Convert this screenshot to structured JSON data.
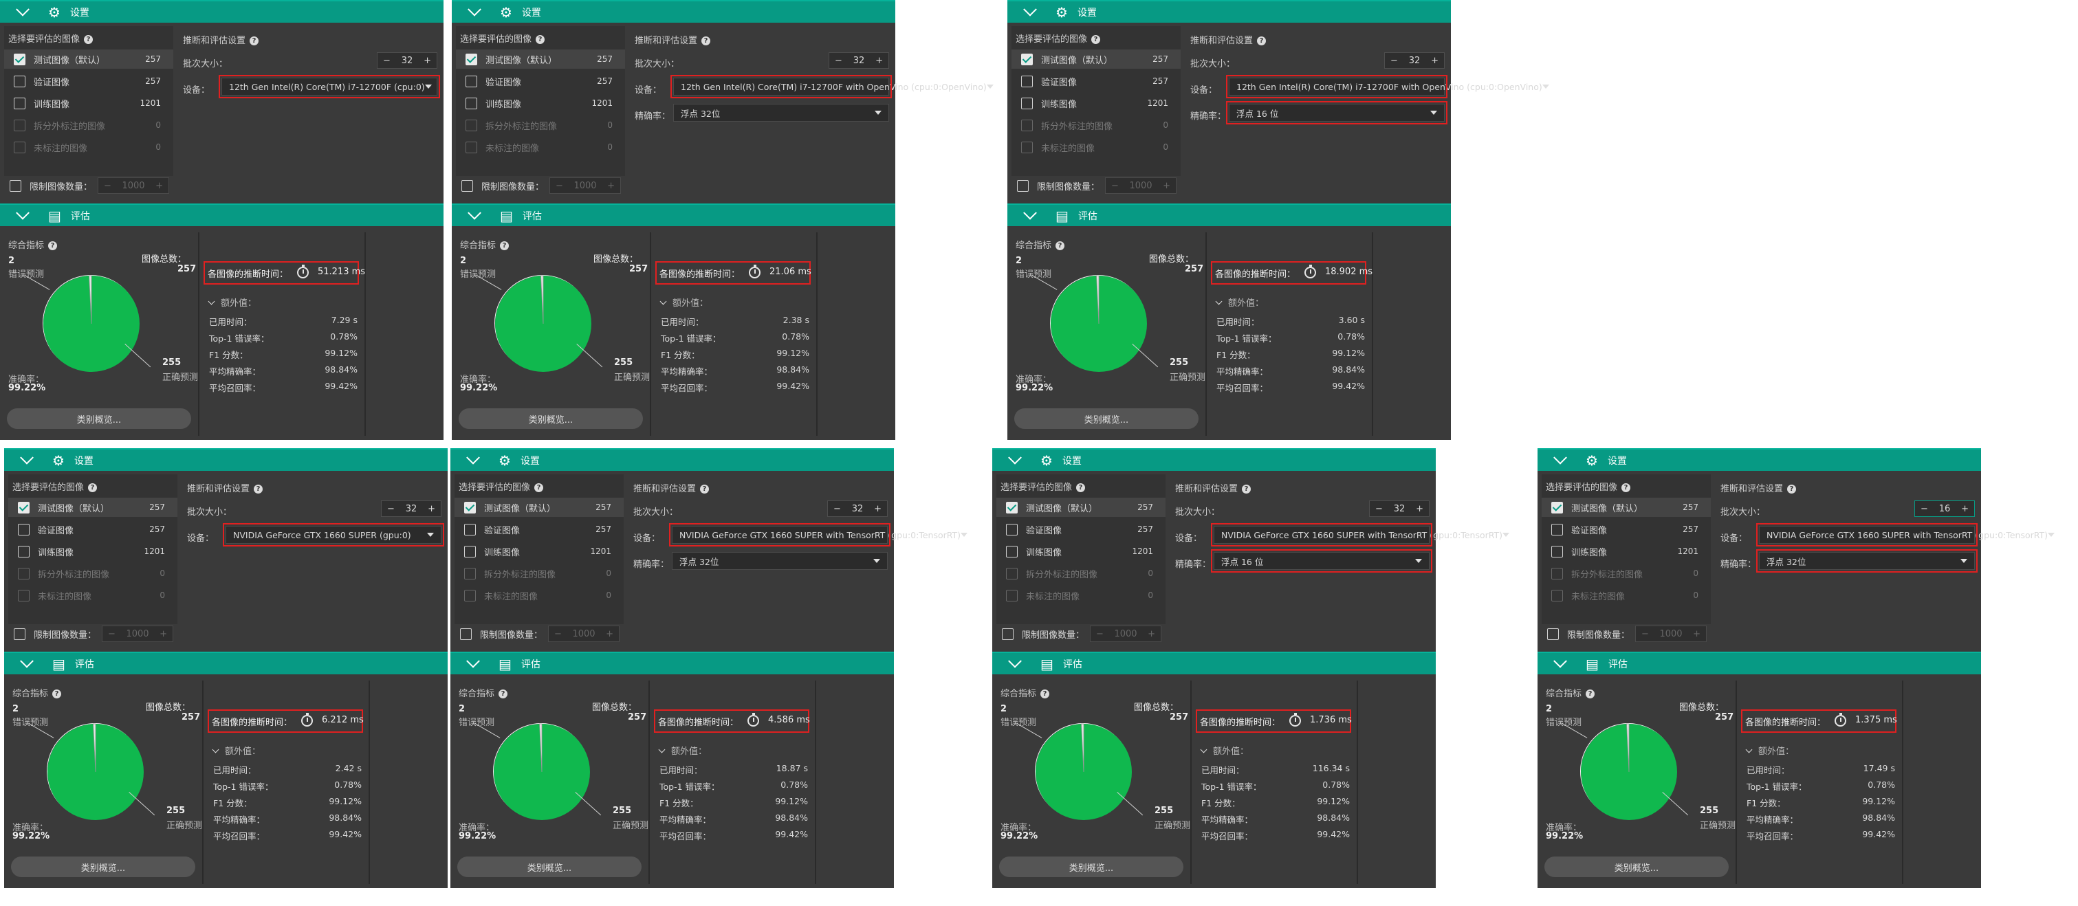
{
  "labels": {
    "settings_header": "设置",
    "eval_header": "评估",
    "select_images": "选择要评估的图像",
    "inference_settings": "推断和评估设置",
    "batch_size": "批次大小：",
    "device": "设备：",
    "precision": "精确率：",
    "limit_images": "限制图像数量：",
    "limit_value": "1000",
    "summary": "综合指标",
    "total_images": "图像总数：",
    "wrong_pred": "错误预测",
    "correct_pred": "正确预测",
    "accuracy_label": "准确率：",
    "per_image_time": "各图像的推断时间：",
    "extras": "额外值：",
    "elapsed": "已用时间：",
    "top1": "Top-1 错误率：",
    "f1": "F1 分数：",
    "avg_precision": "平均精确率：",
    "avg_recall": "平均召回率：",
    "class_overview": "类别概览...",
    "help": "?"
  },
  "image_sets": [
    {
      "label": "测试图像（默认）",
      "count": "257",
      "checked": true,
      "enabled": true
    },
    {
      "label": "验证图像",
      "count": "257",
      "checked": false,
      "enabled": true
    },
    {
      "label": "训练图像",
      "count": "1201",
      "checked": false,
      "enabled": true
    },
    {
      "label": "拆分外标注的图像",
      "count": "0",
      "checked": false,
      "enabled": false
    },
    {
      "label": "未标注的图像",
      "count": "0",
      "checked": false,
      "enabled": false
    }
  ],
  "common_results": {
    "total": "257",
    "wrong": "2",
    "correct": "255",
    "accuracy": "99.22%",
    "top1": "0.78%",
    "f1": "99.12%",
    "avg_precision": "98.84%",
    "avg_recall": "99.42%"
  },
  "pie_chart": {
    "type": "pie",
    "labels": [
      "正确预测",
      "错误预测"
    ],
    "values": [
      255,
      2
    ],
    "colors": [
      "#10b84e",
      "#e6e6e6"
    ]
  },
  "panels": [
    {
      "device": "12th Gen Intel(R) Core(TM) i7-12700F (cpu:0)",
      "precision": "",
      "batch": "32",
      "time": "51.213 ms",
      "elapsed": "7.29 s"
    },
    {
      "device": "12th Gen Intel(R) Core(TM) i7-12700F with OpenVino (cpu:0:OpenVino)",
      "precision": "浮点 32位",
      "batch": "32",
      "time": "21.06 ms",
      "elapsed": "2.38 s"
    },
    {
      "device": "12th Gen Intel(R) Core(TM) i7-12700F with OpenVino (cpu:0:OpenVino)",
      "precision": "浮点 16 位",
      "batch": "32",
      "time": "18.902 ms",
      "elapsed": "3.60 s"
    },
    {
      "device": "NVIDIA GeForce GTX 1660 SUPER (gpu:0)",
      "precision": "",
      "batch": "32",
      "time": "6.212 ms",
      "elapsed": "2.42 s"
    },
    {
      "device": "NVIDIA GeForce GTX 1660 SUPER with TensorRT (gpu:0:TensorRT)",
      "precision": "浮点 32位",
      "batch": "32",
      "time": "4.586 ms",
      "elapsed": "18.87 s"
    },
    {
      "device": "NVIDIA GeForce GTX 1660 SUPER with TensorRT (gpu:0:TensorRT)",
      "precision": "浮点 16 位",
      "batch": "32",
      "time": "1.736 ms",
      "elapsed": "116.34 s"
    },
    {
      "device": "NVIDIA GeForce GTX 1660 SUPER with TensorRT (gpu:0:TensorRT)",
      "precision": "浮点 32位",
      "batch": "16",
      "time": "1.375 ms",
      "elapsed": "17.49 s"
    }
  ],
  "colors": {
    "header": "#079a84",
    "highlight": "#e02020",
    "panel_bg": "#3a3a3a",
    "pie_green": "#10b84e"
  }
}
